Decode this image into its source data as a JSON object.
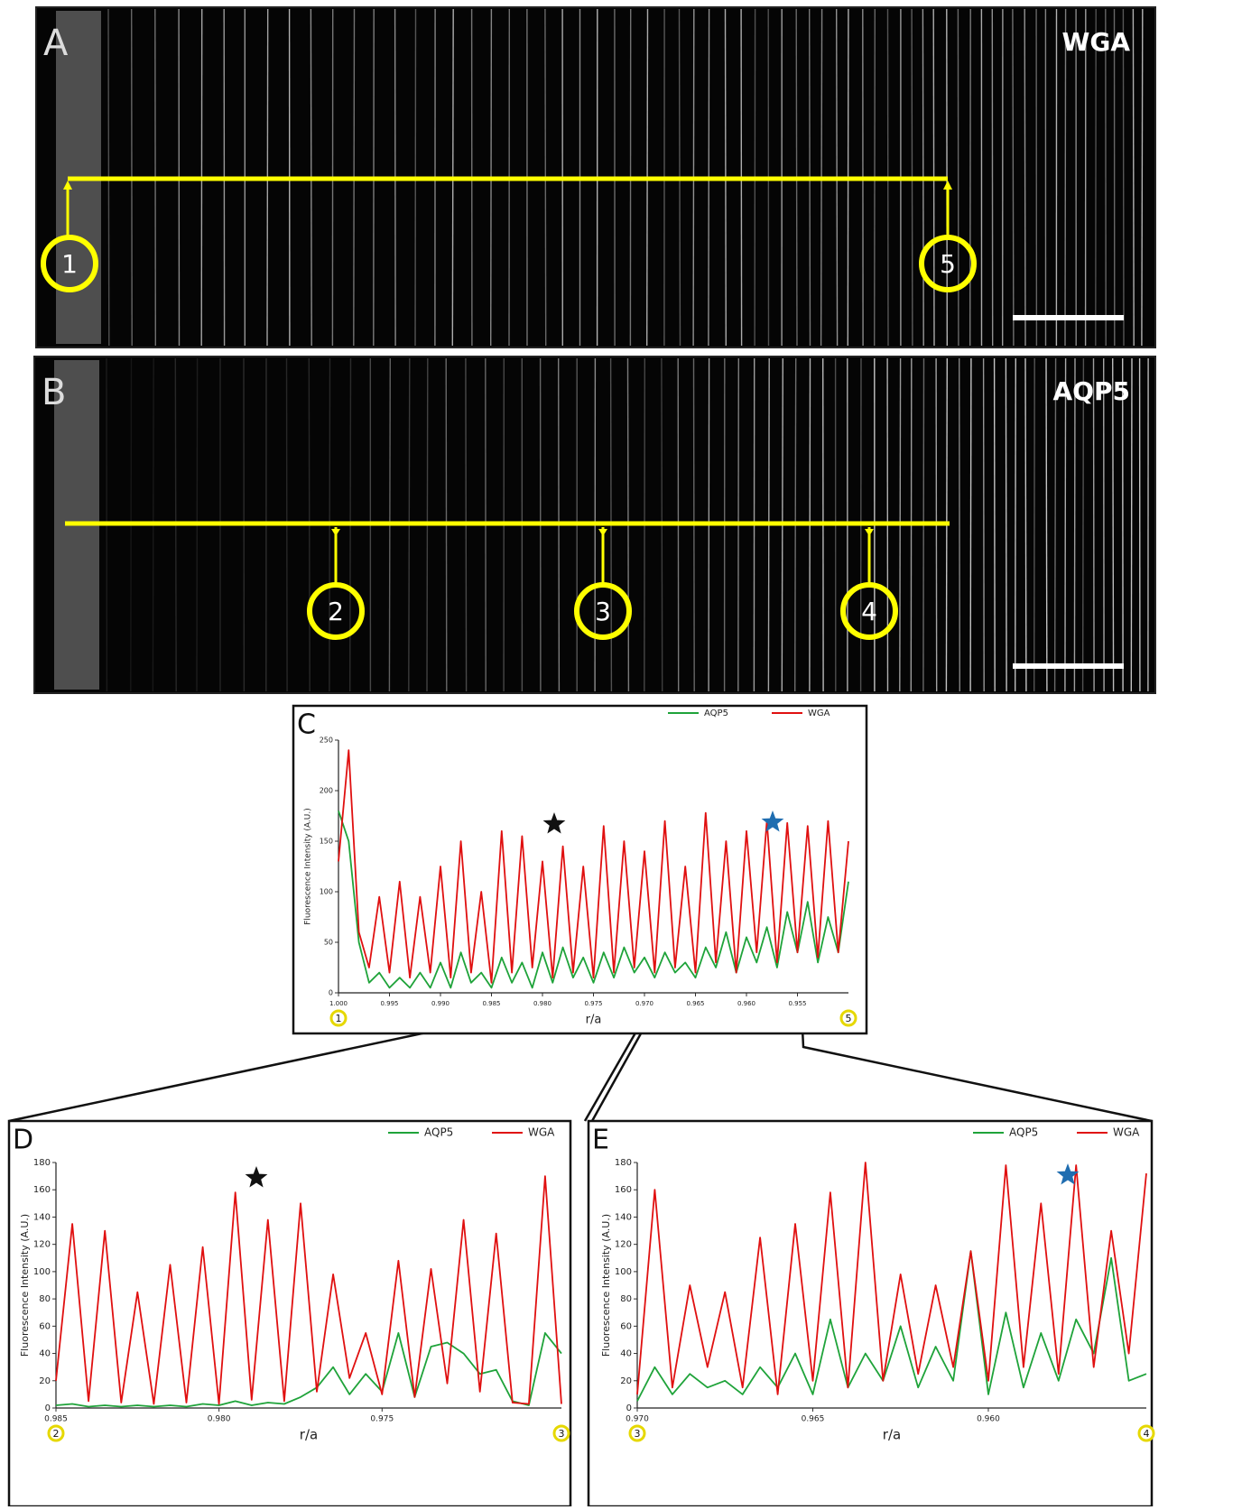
{
  "images": [
    {
      "letter": "A",
      "stain": "WGA",
      "markers": [
        "1",
        "5"
      ]
    },
    {
      "letter": "B",
      "stain": "AQP5",
      "markers": [
        "2",
        "3",
        "4"
      ]
    }
  ],
  "chart_data": [
    {
      "type": "line",
      "panel_label": "C",
      "xlabel": "r/a",
      "ylabel": "Fluorescence Intensity (A.U.)",
      "endpoint_labels": [
        "1",
        "5"
      ],
      "xlim": [
        1.0,
        0.95
      ],
      "ylim": [
        0,
        250
      ],
      "xticks": [
        {
          "value": 1.0,
          "label": "1.000"
        },
        {
          "value": 0.995,
          "label": "0.995"
        },
        {
          "value": 0.99,
          "label": "0.990"
        },
        {
          "value": 0.985,
          "label": "0.985"
        },
        {
          "value": 0.98,
          "label": "0.980"
        },
        {
          "value": 0.975,
          "label": "0.975"
        },
        {
          "value": 0.97,
          "label": "0.970"
        },
        {
          "value": 0.965,
          "label": "0.965"
        },
        {
          "value": 0.96,
          "label": "0.960"
        },
        {
          "value": 0.955,
          "label": "0.955"
        }
      ],
      "yticks": [
        0,
        50,
        100,
        150,
        200,
        250
      ],
      "x": [
        1.0,
        0.999,
        0.998,
        0.997,
        0.996,
        0.995,
        0.994,
        0.993,
        0.992,
        0.991,
        0.99,
        0.989,
        0.988,
        0.987,
        0.986,
        0.985,
        0.984,
        0.983,
        0.982,
        0.981,
        0.98,
        0.979,
        0.978,
        0.977,
        0.976,
        0.975,
        0.974,
        0.973,
        0.972,
        0.971,
        0.97,
        0.969,
        0.968,
        0.967,
        0.966,
        0.965,
        0.964,
        0.963,
        0.962,
        0.961,
        0.96,
        0.959,
        0.958,
        0.957,
        0.956,
        0.955,
        0.954,
        0.953,
        0.952,
        0.951,
        0.95
      ],
      "series": [
        {
          "name": "AQP5",
          "color": "#1fa33a",
          "values": [
            180,
            150,
            50,
            10,
            20,
            5,
            15,
            5,
            20,
            5,
            30,
            5,
            40,
            10,
            20,
            5,
            35,
            10,
            30,
            5,
            40,
            10,
            45,
            15,
            35,
            10,
            40,
            15,
            45,
            20,
            35,
            15,
            40,
            20,
            30,
            15,
            45,
            25,
            60,
            20,
            55,
            30,
            65,
            25,
            80,
            40,
            90,
            30,
            75,
            40,
            110
          ]
        },
        {
          "name": "WGA",
          "color": "#e01010",
          "values": [
            130,
            240,
            60,
            25,
            95,
            20,
            110,
            15,
            95,
            20,
            125,
            15,
            150,
            20,
            100,
            10,
            160,
            20,
            155,
            25,
            130,
            15,
            145,
            20,
            125,
            15,
            165,
            20,
            150,
            25,
            140,
            20,
            170,
            25,
            125,
            20,
            178,
            30,
            150,
            20,
            160,
            40,
            170,
            30,
            168,
            40,
            165,
            35,
            170,
            40,
            150
          ]
        }
      ]
    },
    {
      "type": "line",
      "panel_label": "D",
      "xlabel": "r/a",
      "ylabel": "Fluorescence Intensity (A.U.)",
      "endpoint_labels": [
        "2",
        "3"
      ],
      "xlim": [
        0.985,
        0.9695
      ],
      "ylim": [
        0,
        180
      ],
      "xticks": [
        {
          "value": 0.985,
          "label": "0.985"
        },
        {
          "value": 0.98,
          "label": "0.980"
        },
        {
          "value": 0.975,
          "label": "0.975"
        }
      ],
      "yticks": [
        0,
        20,
        40,
        60,
        80,
        100,
        120,
        140,
        160,
        180
      ],
      "x": [
        0.985,
        0.9845,
        0.984,
        0.9835,
        0.983,
        0.9825,
        0.982,
        0.9815,
        0.981,
        0.9805,
        0.98,
        0.9795,
        0.979,
        0.9785,
        0.978,
        0.9775,
        0.977,
        0.9765,
        0.976,
        0.9755,
        0.975,
        0.9745,
        0.974,
        0.9735,
        0.973,
        0.9725,
        0.972,
        0.9715,
        0.971,
        0.9705,
        0.97,
        0.9695
      ],
      "series": [
        {
          "name": "AQP5",
          "color": "#1fa33a",
          "values": [
            2,
            3,
            1,
            2,
            1,
            2,
            1,
            2,
            1,
            3,
            2,
            5,
            2,
            4,
            3,
            8,
            15,
            30,
            10,
            25,
            12,
            55,
            8,
            45,
            48,
            40,
            25,
            28,
            5,
            2,
            55,
            40
          ]
        },
        {
          "name": "WGA",
          "color": "#e01010",
          "values": [
            20,
            135,
            5,
            130,
            4,
            85,
            3,
            105,
            4,
            118,
            3,
            158,
            6,
            138,
            5,
            150,
            12,
            98,
            22,
            55,
            10,
            108,
            8,
            102,
            18,
            138,
            12,
            128,
            4,
            3,
            170,
            3
          ]
        }
      ]
    },
    {
      "type": "line",
      "panel_label": "E",
      "xlabel": "r/a",
      "ylabel": "Fluorescence Intensity (A.U.)",
      "endpoint_labels": [
        "3",
        "4"
      ],
      "xlim": [
        0.97,
        0.9555
      ],
      "ylim": [
        0,
        180
      ],
      "xticks": [
        {
          "value": 0.97,
          "label": "0.970"
        },
        {
          "value": 0.965,
          "label": "0.965"
        },
        {
          "value": 0.96,
          "label": "0.960"
        }
      ],
      "yticks": [
        0,
        20,
        40,
        60,
        80,
        100,
        120,
        140,
        160,
        180
      ],
      "x": [
        0.97,
        0.9695,
        0.969,
        0.9685,
        0.968,
        0.9675,
        0.967,
        0.9665,
        0.966,
        0.9655,
        0.965,
        0.9645,
        0.964,
        0.9635,
        0.963,
        0.9625,
        0.962,
        0.9615,
        0.961,
        0.9605,
        0.96,
        0.9595,
        0.959,
        0.9585,
        0.958,
        0.9575,
        0.957,
        0.9565,
        0.956,
        0.9555
      ],
      "series": [
        {
          "name": "AQP5",
          "color": "#1fa33a",
          "values": [
            5,
            30,
            10,
            25,
            15,
            20,
            10,
            30,
            15,
            40,
            10,
            65,
            15,
            40,
            20,
            60,
            15,
            45,
            20,
            115,
            10,
            70,
            15,
            55,
            20,
            65,
            40,
            110,
            20,
            25
          ]
        },
        {
          "name": "WGA",
          "color": "#e01010",
          "values": [
            10,
            160,
            15,
            90,
            30,
            85,
            15,
            125,
            10,
            135,
            20,
            158,
            15,
            180,
            20,
            98,
            25,
            90,
            30,
            115,
            20,
            178,
            30,
            150,
            25,
            178,
            30,
            130,
            40,
            172
          ]
        }
      ]
    }
  ]
}
